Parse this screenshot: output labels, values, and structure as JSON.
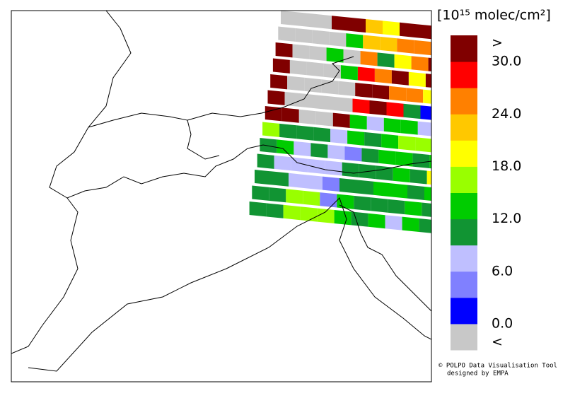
{
  "colorbar": {
    "unit": "[10¹⁵ molec/cm²]",
    "colors": [
      "#c8c8c8",
      "#0000ff",
      "#8080ff",
      "#bfbfff",
      "#119433",
      "#00cc00",
      "#99ff00",
      "#ffff00",
      "#ffc800",
      "#ff8000",
      "#ff0000",
      "#800000"
    ],
    "labels": [
      ">",
      "30.0",
      "24.0",
      "18.0",
      "12.0",
      "6.0",
      "0.0",
      "<"
    ]
  },
  "credit": [
    "© POLPO Data Visualisation Tool",
    "designed by EMPA"
  ],
  "swath": {
    "rows": [
      [
        0,
        0,
        0,
        11,
        11,
        8,
        7,
        11,
        11
      ],
      [
        0,
        0,
        0,
        0,
        5,
        8,
        8,
        9,
        9,
        11,
        6
      ],
      [
        11,
        0,
        0,
        5,
        0,
        9,
        4,
        7,
        9,
        11,
        6
      ],
      [
        11,
        0,
        0,
        0,
        5,
        10,
        9,
        11,
        7,
        11,
        9
      ],
      [
        11,
        0,
        0,
        0,
        0,
        11,
        11,
        9,
        9,
        7,
        8
      ],
      [
        11,
        0,
        0,
        0,
        0,
        10,
        11,
        10,
        4,
        1,
        8
      ],
      [
        11,
        11,
        0,
        0,
        11,
        5,
        3,
        5,
        5,
        3,
        4
      ],
      [
        6,
        4,
        4,
        4,
        3,
        5,
        4,
        5,
        6,
        6,
        5
      ],
      [
        4,
        5,
        3,
        4,
        3,
        2,
        4,
        5,
        5,
        4,
        5
      ],
      [
        4,
        3,
        3,
        3,
        3,
        4,
        4,
        4,
        5,
        4,
        7
      ],
      [
        4,
        4,
        3,
        3,
        2,
        4,
        4,
        5,
        5,
        4,
        5
      ],
      [
        4,
        4,
        6,
        6,
        2,
        5,
        4,
        4,
        4,
        5,
        4
      ],
      [
        4,
        4,
        6,
        6,
        6,
        5,
        4,
        5,
        3,
        5,
        4
      ]
    ]
  }
}
